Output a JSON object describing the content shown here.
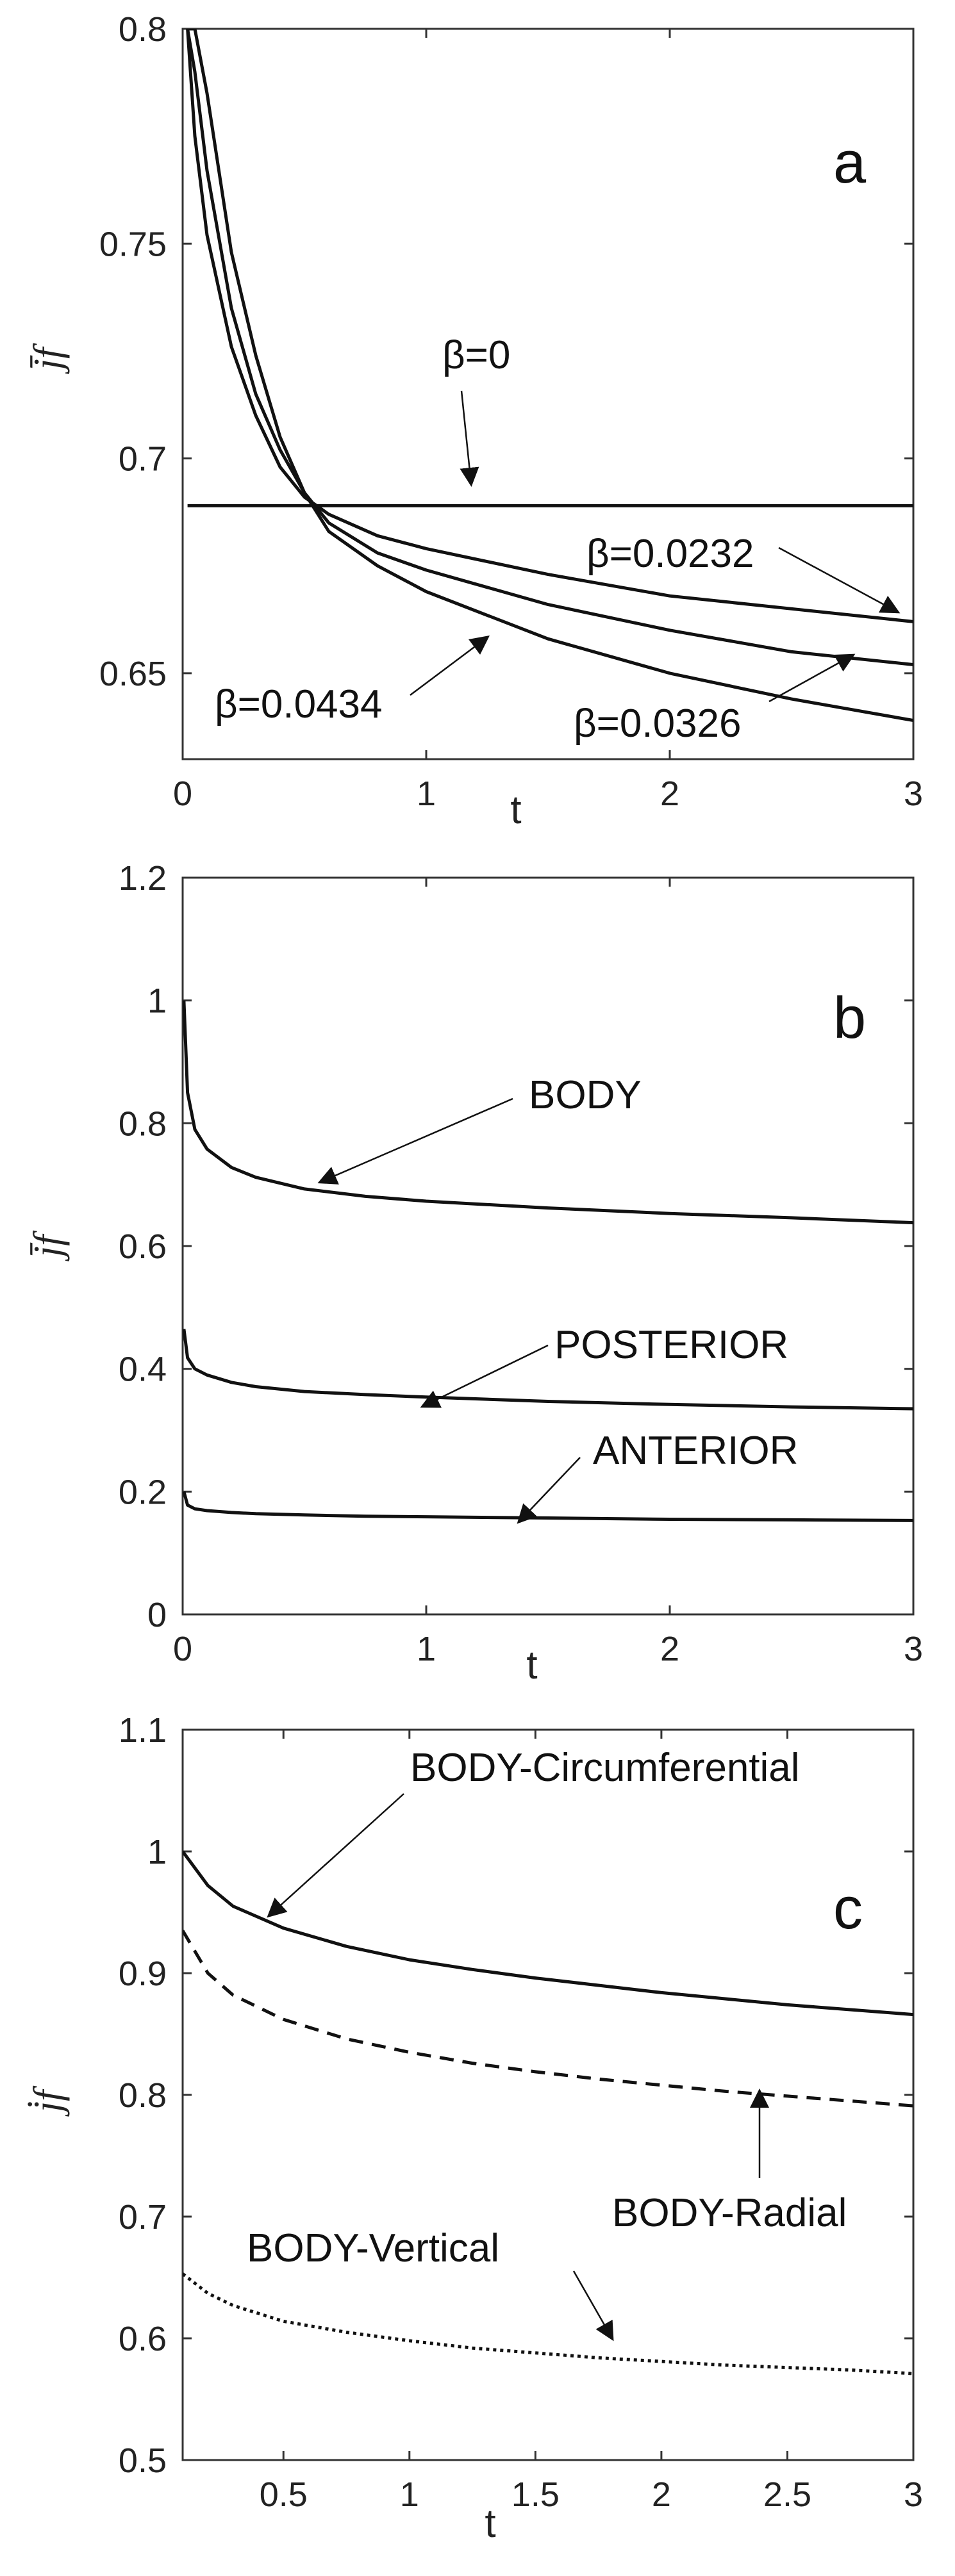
{
  "chart_data": [
    {
      "type": "line",
      "panel": "a",
      "xlabel": "t",
      "ylabel": "j̄f",
      "xlim": [
        0,
        3
      ],
      "ylim": [
        0.63,
        0.8
      ],
      "xticks": [
        "0",
        "1",
        "2",
        "3"
      ],
      "yticks": [
        "0.65",
        "0.7",
        "0.75",
        "0.8"
      ],
      "x": [
        0.02,
        0.05,
        0.1,
        0.2,
        0.3,
        0.4,
        0.5,
        0.6,
        0.8,
        1.0,
        1.5,
        2.0,
        2.5,
        3.0
      ],
      "series": [
        {
          "name": "β=0",
          "values": [
            0.689,
            0.689,
            0.689,
            0.689,
            0.689,
            0.689,
            0.689,
            0.689,
            0.689,
            0.689,
            0.689,
            0.689,
            0.689,
            0.689
          ]
        },
        {
          "name": "β=0.0232",
          "values": [
            0.8,
            0.775,
            0.752,
            0.726,
            0.71,
            0.698,
            0.691,
            0.687,
            0.682,
            0.679,
            0.673,
            0.668,
            0.665,
            0.662
          ]
        },
        {
          "name": "β=0.0326",
          "values": [
            0.8,
            0.79,
            0.767,
            0.735,
            0.715,
            0.702,
            0.692,
            0.685,
            0.678,
            0.674,
            0.666,
            0.66,
            0.655,
            0.652
          ]
        },
        {
          "name": "β=0.0434",
          "values": [
            0.8,
            0.8,
            0.785,
            0.748,
            0.724,
            0.705,
            0.692,
            0.683,
            0.675,
            0.669,
            0.658,
            0.65,
            0.644,
            0.639
          ]
        }
      ],
      "annotations": [
        "β=0",
        "β=0.0232",
        "β=0.0434",
        "β=0.0326"
      ],
      "label": "a",
      "grid": false
    },
    {
      "type": "line",
      "panel": "b",
      "xlabel": "t",
      "ylabel": "j̄f",
      "xlim": [
        0,
        3
      ],
      "ylim": [
        0,
        1.2
      ],
      "xticks": [
        "0",
        "1",
        "2",
        "3"
      ],
      "yticks": [
        "0",
        "0.2",
        "0.4",
        "0.6",
        "0.8",
        "1",
        "1.2"
      ],
      "x": [
        0.005,
        0.02,
        0.05,
        0.1,
        0.2,
        0.3,
        0.5,
        0.75,
        1.0,
        1.5,
        2.0,
        2.5,
        3.0
      ],
      "series": [
        {
          "name": "BODY",
          "values": [
            1.0,
            0.85,
            0.79,
            0.758,
            0.728,
            0.712,
            0.693,
            0.681,
            0.673,
            0.662,
            0.653,
            0.646,
            0.638
          ]
        },
        {
          "name": "POSTERIOR",
          "values": [
            0.465,
            0.418,
            0.4,
            0.39,
            0.378,
            0.371,
            0.363,
            0.358,
            0.354,
            0.347,
            0.342,
            0.338,
            0.335
          ]
        },
        {
          "name": "ANTERIOR",
          "values": [
            0.2,
            0.178,
            0.172,
            0.169,
            0.166,
            0.164,
            0.162,
            0.16,
            0.159,
            0.157,
            0.155,
            0.154,
            0.153
          ]
        }
      ],
      "annotations": [
        "BODY",
        "POSTERIOR",
        "ANTERIOR"
      ],
      "label": "b",
      "grid": false
    },
    {
      "type": "line",
      "panel": "c",
      "xlabel": "t",
      "ylabel": "j̇f",
      "xlim": [
        0.1,
        3
      ],
      "ylim": [
        0.5,
        1.1
      ],
      "xticks": [
        "0.5",
        "1",
        "1.5",
        "2",
        "2.5",
        "3"
      ],
      "yticks": [
        "0.5",
        "0.6",
        "0.7",
        "0.8",
        "0.9",
        "1",
        "1.1"
      ],
      "x": [
        0.1,
        0.2,
        0.3,
        0.5,
        0.75,
        1.0,
        1.25,
        1.5,
        1.75,
        2.0,
        2.25,
        2.5,
        2.75,
        3.0
      ],
      "series": [
        {
          "name": "BODY-Circumferential",
          "values": [
            1.0,
            0.972,
            0.955,
            0.937,
            0.922,
            0.911,
            0.903,
            0.896,
            0.89,
            0.884,
            0.879,
            0.874,
            0.87,
            0.866
          ]
        },
        {
          "name": "BODY-Radial",
          "values": [
            0.935,
            0.9,
            0.882,
            0.862,
            0.846,
            0.835,
            0.826,
            0.819,
            0.813,
            0.808,
            0.803,
            0.799,
            0.795,
            0.791
          ]
        },
        {
          "name": "BODY-Vertical",
          "values": [
            0.653,
            0.637,
            0.627,
            0.614,
            0.605,
            0.598,
            0.592,
            0.588,
            0.584,
            0.581,
            0.578,
            0.576,
            0.574,
            0.571
          ]
        }
      ],
      "annotations": [
        "BODY-Circumferential",
        "BODY-Radial",
        "BODY-Vertical"
      ],
      "label": "c",
      "grid": false
    }
  ]
}
